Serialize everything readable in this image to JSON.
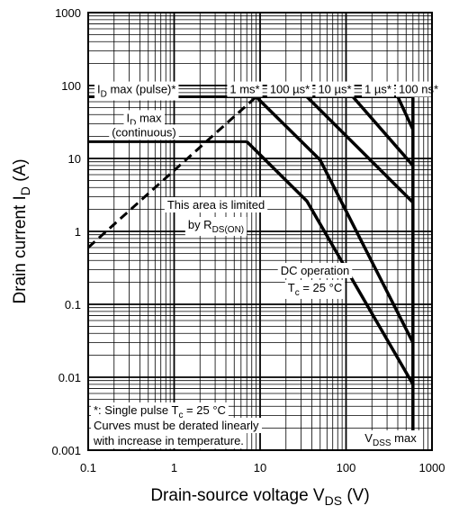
{
  "chart_data": {
    "type": "line",
    "scale": {
      "x": "log",
      "y": "log"
    },
    "xlim": [
      0.1,
      1000
    ],
    "ylim": [
      0.001,
      1000
    ],
    "grid": true,
    "x_ticks": [
      "0.1",
      "1",
      "10",
      "100",
      "1000"
    ],
    "y_ticks": [
      "0.001",
      "0.01",
      "0.1",
      "1",
      "10",
      "100",
      "1000"
    ],
    "xlabel": {
      "main": "Drain-source voltage  V",
      "sub": "DS",
      "unit": "  (V)"
    },
    "ylabel": {
      "main": "Drain current  I",
      "sub": "D",
      "unit": "  (A)"
    },
    "series": [
      {
        "name": "1 µs*",
        "x": [
          400,
          600
        ],
        "y": [
          70,
          25
        ]
      },
      {
        "name": "10 µs*",
        "x": [
          120,
          600
        ],
        "y": [
          70,
          8
        ]
      },
      {
        "name": "100 µs*",
        "x": [
          35,
          600
        ],
        "y": [
          70,
          2.5
        ]
      },
      {
        "name": "1 ms*",
        "x": [
          9,
          50,
          600
        ],
        "y": [
          70,
          9.5,
          0.03
        ]
      },
      {
        "name": "DC operation",
        "x": [
          7,
          35,
          600
        ],
        "y": [
          17,
          2.6,
          0.008
        ]
      }
    ],
    "id_max_pulse": 70,
    "id_max_continuous": 17,
    "vdss_max": 600,
    "rds_on_limit": {
      "x": [
        0.1,
        9
      ],
      "y": [
        0.6,
        70
      ]
    },
    "annotations": {
      "id_pulse": {
        "main": "I",
        "sub": "D",
        "rest": " max (pulse)*"
      },
      "id_cont_1": {
        "main": "I",
        "sub": "D",
        "rest": " max"
      },
      "id_cont_2": "(continuous)",
      "label_1ms": "1 ms*",
      "label_100us": "100 µs*",
      "label_10us": "10 µs*",
      "label_1us": "1 µs*",
      "label_100ns": "100 ns*",
      "area_1": "This area is limited",
      "area_2": {
        "main": "by R",
        "sub": "DS(ON)"
      },
      "dc_1": "DC operation",
      "dc_2": {
        "main": "T",
        "sub": "c",
        "rest": " = 25 °C"
      },
      "note_1": {
        "main": "*: Single pulse  T",
        "sub": "c",
        "rest": " = 25 °C"
      },
      "note_2": "Curves must be derated linearly",
      "note_3": "with increase in temperature.",
      "vdss": {
        "main": "V",
        "sub": "DSS",
        "rest": " max"
      }
    }
  }
}
